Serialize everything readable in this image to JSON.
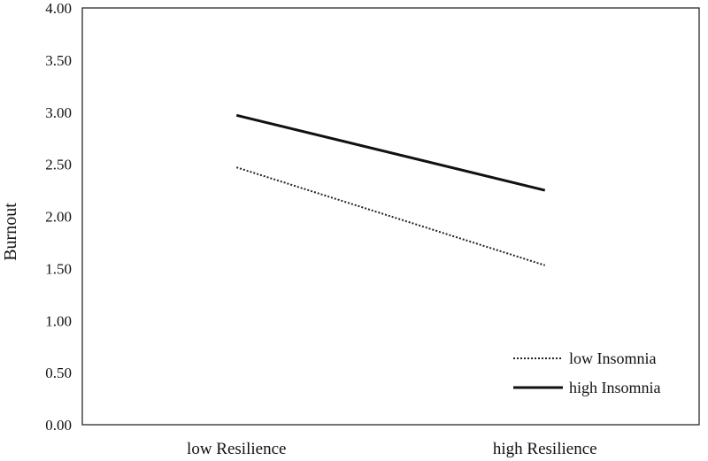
{
  "chart_data": {
    "type": "line",
    "categories": [
      "low Resilience",
      "high Resilience"
    ],
    "series": [
      {
        "name": "low Insomnia",
        "values": [
          2.47,
          1.53
        ],
        "style": "dotted",
        "color": "#222222"
      },
      {
        "name": "high Insomnia",
        "values": [
          2.97,
          2.25
        ],
        "style": "solid",
        "color": "#111111"
      }
    ],
    "ylabel": "Burnout",
    "xlabel": "",
    "ylim": [
      0,
      4
    ],
    "ytick_labels": [
      "0.00",
      "0.50",
      "1.00",
      "1.50",
      "2.00",
      "2.50",
      "3.00",
      "3.50",
      "4.00"
    ],
    "grid": false,
    "legend_position": "bottom-right"
  }
}
